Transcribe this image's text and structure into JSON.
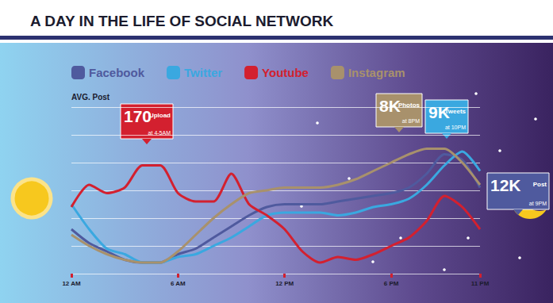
{
  "chart_data": {
    "type": "line",
    "title": "A DAY IN THE LIFE OF SOCIAL NETWORK",
    "y_label": "AVG. Post",
    "x": [
      0,
      1,
      2,
      3,
      4,
      5,
      6,
      7,
      8,
      9,
      10,
      11,
      12,
      13,
      14,
      15,
      16,
      17,
      18,
      19,
      20,
      21,
      22,
      23
    ],
    "xlim": [
      0,
      23
    ],
    "xticks": [
      {
        "value": 0,
        "label": "12 AM"
      },
      {
        "value": 6,
        "label": "6 AM"
      },
      {
        "value": 12,
        "label": "12 PM"
      },
      {
        "value": 18,
        "label": "6 PM"
      },
      {
        "value": 23,
        "label": "11 PM"
      }
    ],
    "ylim": [
      0,
      6
    ],
    "yticks": [
      0,
      1,
      2,
      3,
      4,
      5,
      6
    ],
    "grid": true,
    "tick_labels": "x",
    "legend": "top-left",
    "series": [
      {
        "name": "Facebook",
        "color": "#4f5a9e",
        "values": [
          1.6,
          1.1,
          0.8,
          0.5,
          0.4,
          0.4,
          0.7,
          0.9,
          1.3,
          1.7,
          2.1,
          2.4,
          2.5,
          2.5,
          2.5,
          2.6,
          2.7,
          2.8,
          2.9,
          3.1,
          3.6,
          4.3,
          4.1,
          3.1
        ]
      },
      {
        "name": "Twitter",
        "color": "#3aa8e0",
        "values": [
          2.5,
          1.6,
          0.9,
          0.7,
          0.4,
          0.4,
          0.6,
          0.7,
          1.0,
          1.3,
          1.7,
          2.1,
          2.2,
          2.2,
          2.2,
          2.1,
          2.2,
          2.4,
          2.5,
          2.7,
          3.2,
          3.9,
          4.4,
          3.7
        ]
      },
      {
        "name": "Youtube",
        "color": "#d3202f",
        "values": [
          2.4,
          3.2,
          2.9,
          3.1,
          3.9,
          3.9,
          2.9,
          2.6,
          2.6,
          3.6,
          2.5,
          2.1,
          1.6,
          0.8,
          0.4,
          0.6,
          0.5,
          0.7,
          1.0,
          1.3,
          1.9,
          2.8,
          2.4,
          1.6
        ]
      },
      {
        "name": "Instagram",
        "color": "#a8916c",
        "values": [
          1.4,
          1.0,
          0.7,
          0.5,
          0.4,
          0.4,
          0.8,
          1.4,
          2.0,
          2.5,
          2.9,
          3.0,
          3.1,
          3.1,
          3.1,
          3.2,
          3.4,
          3.7,
          4.0,
          4.3,
          4.5,
          4.5,
          4.0,
          3.2
        ]
      }
    ],
    "annotations": [
      {
        "series": "Youtube",
        "value": "170",
        "label": "Upload",
        "note": "at 4-5AM"
      },
      {
        "series": "Instagram",
        "value": "8K",
        "label": "Photos",
        "note": "at 8PM"
      },
      {
        "series": "Twitter",
        "value": "9K",
        "label": "Tweets",
        "note": "at 10PM"
      },
      {
        "series": "Facebook",
        "value": "12K",
        "label": "Post",
        "note": "at 9PM"
      }
    ]
  }
}
